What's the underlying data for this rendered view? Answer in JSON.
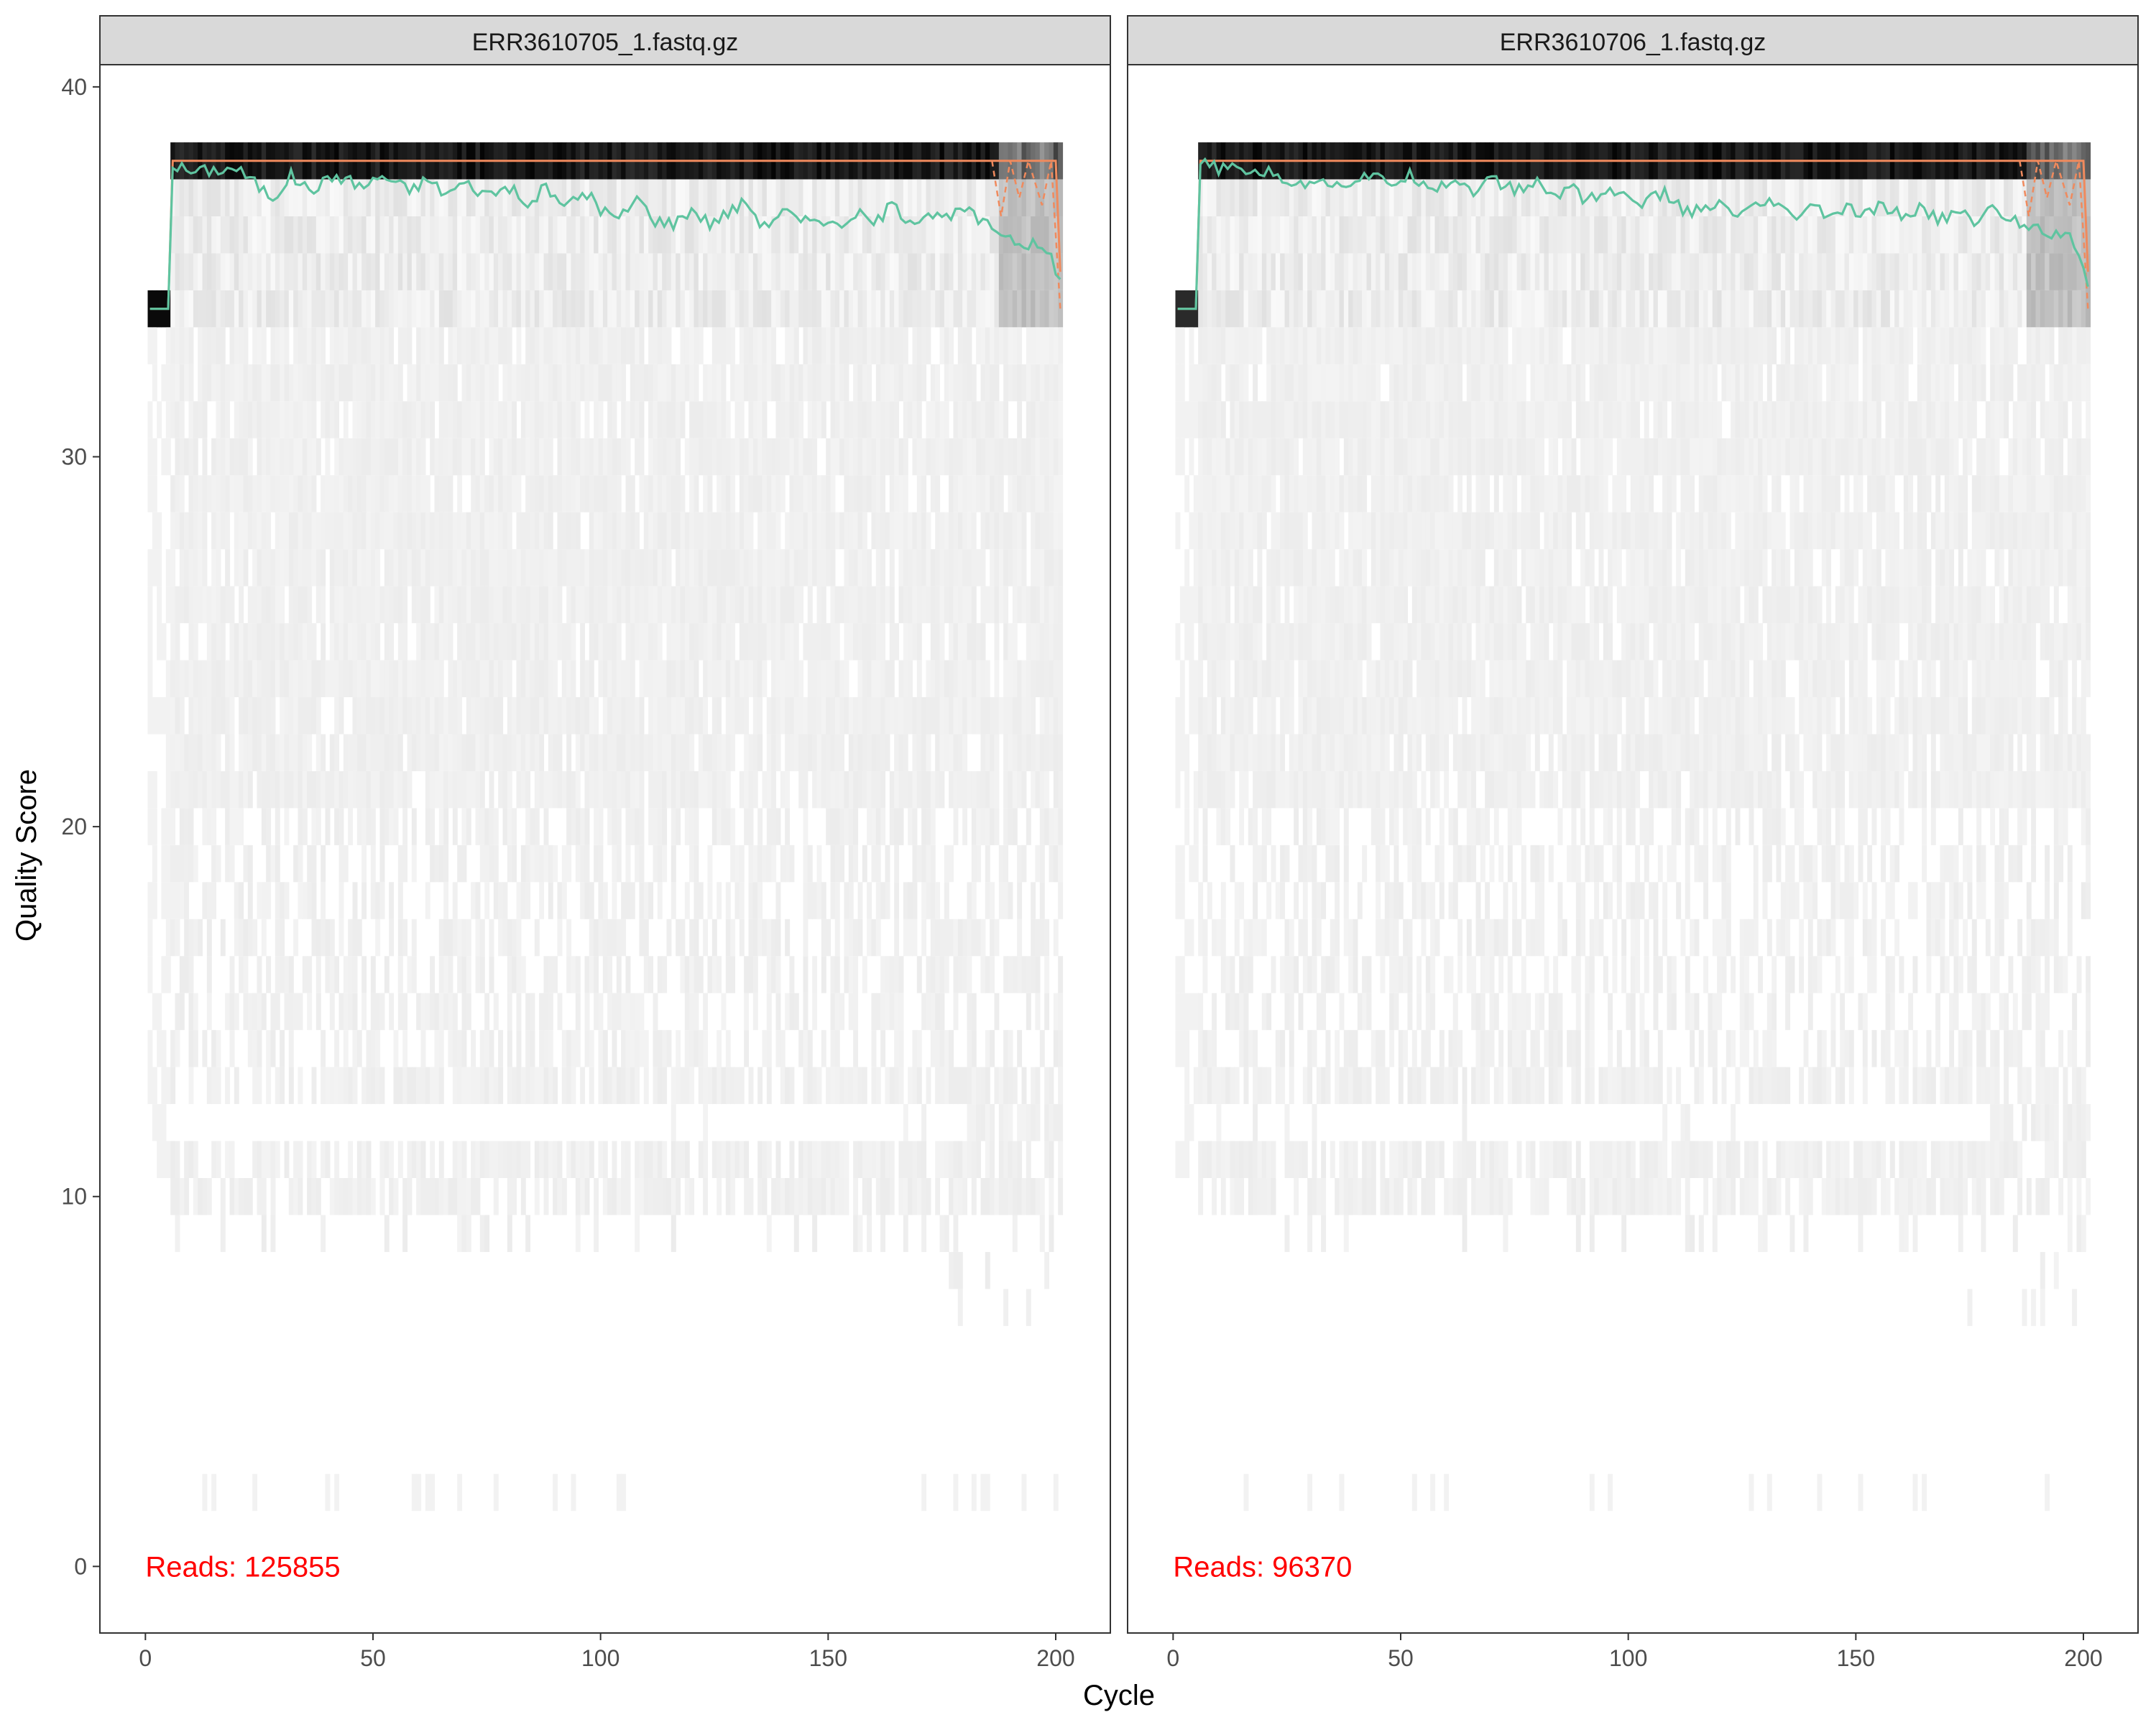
{
  "chart_data": {
    "type": "heatmap",
    "title": "",
    "xlabel": "Cycle",
    "ylabel": "Quality Score",
    "xlim": [
      -10,
      212
    ],
    "ylim": [
      -1.8,
      40.6
    ],
    "x_ticks": [
      0,
      50,
      100,
      150,
      200
    ],
    "y_ticks": [
      0,
      10,
      20,
      30,
      40
    ],
    "grid": false,
    "legend": "none",
    "colors": {
      "mean_line": "#5fc4a0",
      "median_line": "#f08a5d",
      "quartile_line": "#f08a5d",
      "reads_text": "#ff0000",
      "strip_fill": "#d9d9d9",
      "heat_high": "#000000",
      "heat_low": "#f4f4f4"
    },
    "reads_label": "Reads:",
    "panels": [
      {
        "strip_label": "ERR3610705_1.fastq.gz",
        "reads_count": "125855",
        "first_cycles_quality": 34,
        "main_quality": 38,
        "last_cycle": 201,
        "mean_quality_per_cycle": [
          [
            1,
            34.0
          ],
          [
            5,
            34.0
          ],
          [
            6,
            37.9
          ],
          [
            10,
            37.7
          ],
          [
            20,
            37.8
          ],
          [
            25,
            37.3
          ],
          [
            28,
            37.0
          ],
          [
            32,
            37.6
          ],
          [
            36,
            37.2
          ],
          [
            42,
            37.6
          ],
          [
            48,
            37.3
          ],
          [
            52,
            37.6
          ],
          [
            58,
            37.2
          ],
          [
            62,
            37.5
          ],
          [
            66,
            37.1
          ],
          [
            70,
            37.4
          ],
          [
            75,
            37.1
          ],
          [
            80,
            37.3
          ],
          [
            84,
            36.7
          ],
          [
            88,
            37.4
          ],
          [
            90,
            36.9
          ],
          [
            94,
            36.9
          ],
          [
            98,
            37.1
          ],
          [
            100,
            36.7
          ],
          [
            104,
            36.4
          ],
          [
            108,
            37.0
          ],
          [
            112,
            36.4
          ],
          [
            116,
            36.3
          ],
          [
            120,
            36.7
          ],
          [
            124,
            36.3
          ],
          [
            128,
            36.6
          ],
          [
            132,
            36.9
          ],
          [
            136,
            36.2
          ],
          [
            140,
            36.7
          ],
          [
            144,
            36.3
          ],
          [
            148,
            36.5
          ],
          [
            152,
            36.2
          ],
          [
            156,
            36.6
          ],
          [
            160,
            36.3
          ],
          [
            164,
            36.8
          ],
          [
            168,
            36.4
          ],
          [
            172,
            36.6
          ],
          [
            176,
            36.4
          ],
          [
            180,
            36.7
          ],
          [
            184,
            36.3
          ],
          [
            188,
            36.1
          ],
          [
            192,
            35.8
          ],
          [
            196,
            35.7
          ],
          [
            199,
            35.4
          ],
          [
            201,
            34.8
          ]
        ]
      },
      {
        "strip_label": "ERR3610706_1.fastq.gz",
        "reads_count": "96370",
        "first_cycles_quality": 34,
        "main_quality": 38,
        "last_cycle": 201,
        "mean_quality_per_cycle": [
          [
            1,
            34.0
          ],
          [
            5,
            34.0
          ],
          [
            6,
            37.9
          ],
          [
            10,
            37.8
          ],
          [
            20,
            37.7
          ],
          [
            25,
            37.5
          ],
          [
            28,
            37.3
          ],
          [
            32,
            37.6
          ],
          [
            36,
            37.3
          ],
          [
            42,
            37.6
          ],
          [
            48,
            37.4
          ],
          [
            52,
            37.6
          ],
          [
            58,
            37.3
          ],
          [
            62,
            37.5
          ],
          [
            66,
            37.2
          ],
          [
            70,
            37.5
          ],
          [
            75,
            37.2
          ],
          [
            80,
            37.4
          ],
          [
            84,
            37.0
          ],
          [
            88,
            37.4
          ],
          [
            90,
            37.0
          ],
          [
            94,
            37.1
          ],
          [
            98,
            37.2
          ],
          [
            100,
            36.9
          ],
          [
            104,
            36.9
          ],
          [
            108,
            37.1
          ],
          [
            112,
            36.7
          ],
          [
            116,
            36.6
          ],
          [
            120,
            36.8
          ],
          [
            124,
            36.5
          ],
          [
            128,
            36.7
          ],
          [
            132,
            36.9
          ],
          [
            136,
            36.4
          ],
          [
            140,
            36.8
          ],
          [
            144,
            36.5
          ],
          [
            148,
            36.7
          ],
          [
            152,
            36.5
          ],
          [
            156,
            36.8
          ],
          [
            160,
            36.5
          ],
          [
            164,
            36.7
          ],
          [
            168,
            36.4
          ],
          [
            172,
            36.6
          ],
          [
            176,
            36.4
          ],
          [
            180,
            36.7
          ],
          [
            184,
            36.4
          ],
          [
            188,
            36.3
          ],
          [
            192,
            36.1
          ],
          [
            196,
            36.0
          ],
          [
            199,
            35.6
          ],
          [
            201,
            34.6
          ]
        ]
      }
    ]
  }
}
